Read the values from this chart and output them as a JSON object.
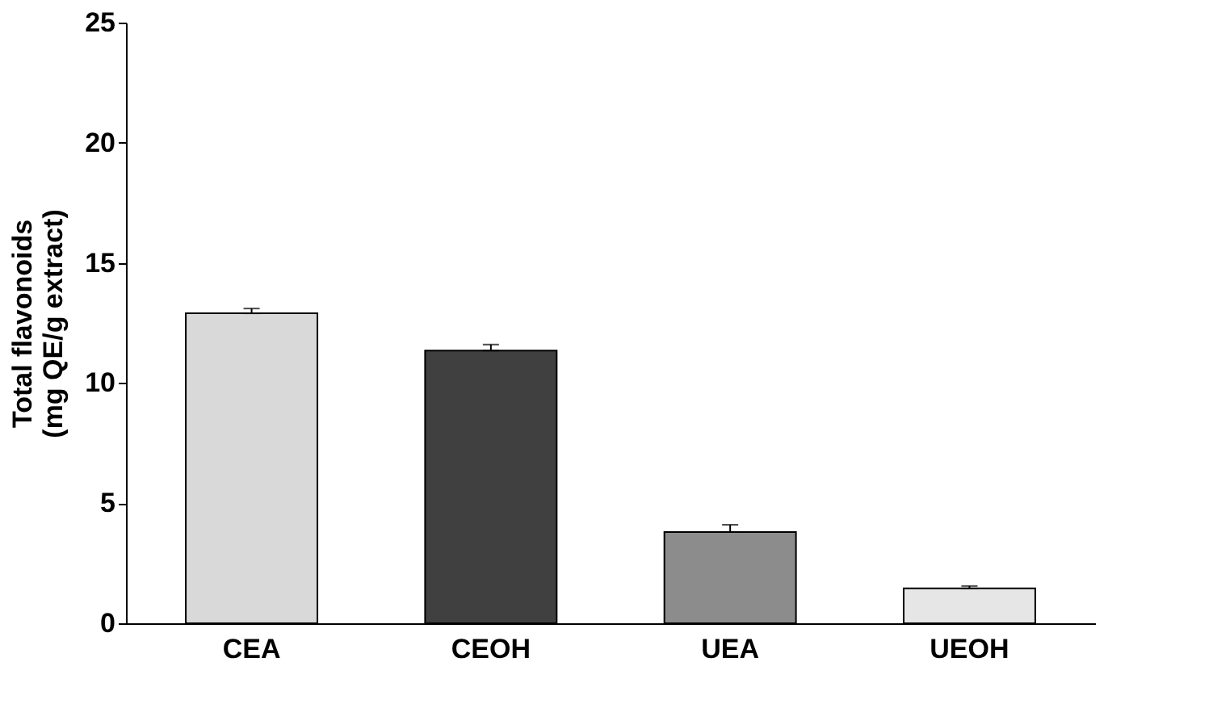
{
  "chart_data": {
    "type": "bar",
    "ylabel": "Total flavonoids\n(mg QE/g extract)",
    "categories": [
      "CEA",
      "CEOH",
      "UEA",
      "UEOH"
    ],
    "values": [
      12.9,
      11.35,
      3.8,
      1.45
    ],
    "colors": [
      "#d9d9d9",
      "#404040",
      "#8c8c8c",
      "#e6e6e6"
    ],
    "errors": [
      [
        12.9,
        13.1
      ],
      [
        11.35,
        11.6
      ],
      [
        3.8,
        4.1
      ],
      [
        1.45,
        1.55
      ]
    ],
    "ylim": [
      0,
      25
    ],
    "yticks": [
      0,
      5,
      10,
      15,
      20,
      25
    ],
    "grid": false
  }
}
